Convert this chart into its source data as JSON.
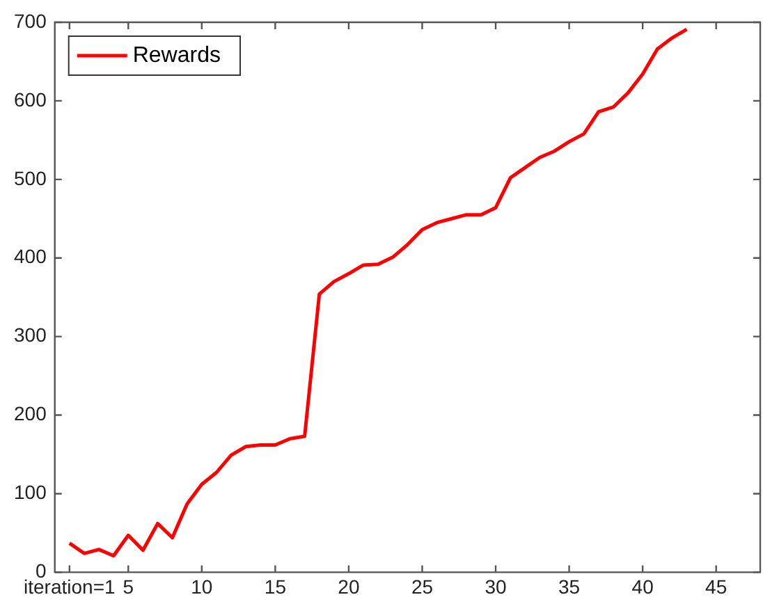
{
  "chart_data": {
    "type": "line",
    "x": [
      1,
      2,
      3,
      4,
      5,
      6,
      7,
      8,
      9,
      10,
      11,
      12,
      13,
      14,
      15,
      16,
      17,
      18,
      19,
      20,
      21,
      22,
      23,
      24,
      25,
      26,
      27,
      28,
      29,
      30,
      31,
      32,
      33,
      34,
      35,
      36,
      37,
      38,
      39,
      40,
      41,
      42,
      43
    ],
    "series": [
      {
        "name": "Rewards",
        "color": "#ff0000",
        "values": [
          37,
          24,
          29,
          21,
          47,
          28,
          62,
          44,
          87,
          112,
          127,
          149,
          160,
          162,
          162,
          170,
          173,
          354,
          370,
          380,
          391,
          392,
          401,
          417,
          436,
          445,
          450,
          455,
          455,
          464,
          502,
          515,
          528,
          536,
          548,
          558,
          586,
          592,
          610,
          634,
          666,
          680,
          691
        ]
      }
    ],
    "xlim": [
      0,
      48
    ],
    "xticks": [
      {
        "value": 1,
        "label": "iteration=1"
      },
      5,
      10,
      15,
      20,
      25,
      30,
      35,
      40,
      45
    ],
    "ylim": [
      0,
      700
    ],
    "yticks": [
      0,
      100,
      200,
      300,
      400,
      500,
      600,
      700
    ],
    "grid": false,
    "legend": "top left",
    "marker": "none",
    "line_style": "solid"
  }
}
